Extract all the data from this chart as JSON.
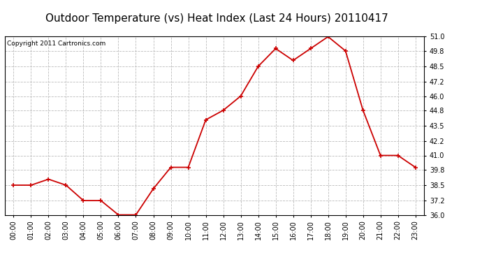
{
  "title": "Outdoor Temperature (vs) Heat Index (Last 24 Hours) 20110417",
  "copyright": "Copyright 2011 Cartronics.com",
  "x_labels": [
    "00:00",
    "01:00",
    "02:00",
    "03:00",
    "04:00",
    "05:00",
    "06:00",
    "07:00",
    "08:00",
    "09:00",
    "10:00",
    "11:00",
    "12:00",
    "13:00",
    "14:00",
    "15:00",
    "16:00",
    "17:00",
    "18:00",
    "19:00",
    "20:00",
    "21:00",
    "22:00",
    "23:00"
  ],
  "y_values": [
    38.5,
    38.5,
    39.0,
    38.5,
    37.2,
    37.2,
    36.0,
    36.0,
    38.2,
    40.0,
    40.0,
    44.0,
    44.8,
    46.0,
    48.5,
    50.0,
    49.0,
    50.0,
    51.0,
    49.8,
    44.8,
    41.0,
    41.0,
    40.0
  ],
  "line_color": "#cc0000",
  "marker_color": "#cc0000",
  "marker": "+",
  "marker_size": 5,
  "marker_linewidth": 1.2,
  "line_width": 1.3,
  "ylim_min": 36.0,
  "ylim_max": 51.0,
  "yticks": [
    36.0,
    37.2,
    38.5,
    39.8,
    41.0,
    42.2,
    43.5,
    44.8,
    46.0,
    47.2,
    48.5,
    49.8,
    51.0
  ],
  "background_color": "#ffffff",
  "plot_bg_color": "#ffffff",
  "grid_color": "#bbbbbb",
  "title_fontsize": 11,
  "tick_fontsize": 7,
  "copyright_fontsize": 6.5
}
